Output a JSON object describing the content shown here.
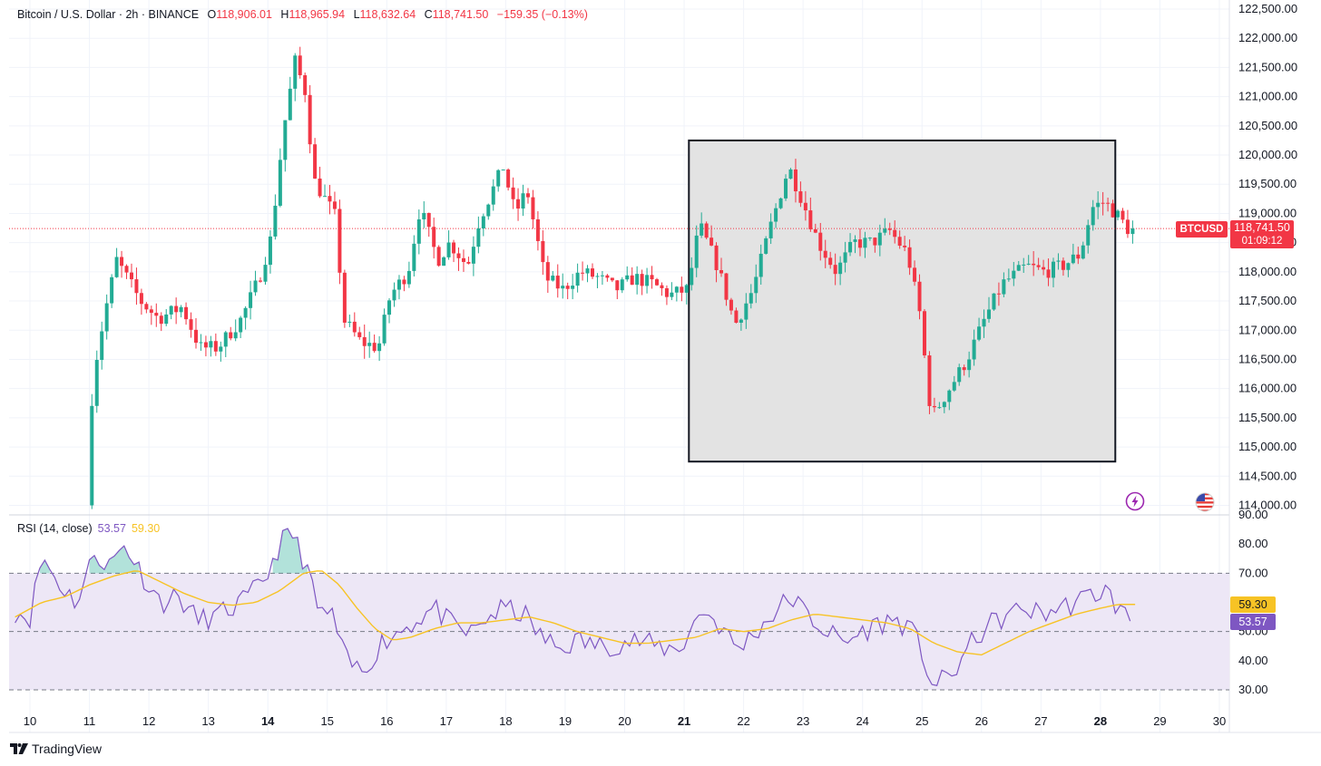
{
  "header": {
    "symbol": "Bitcoin / U.S. Dollar · 2h · BINANCE",
    "o_label": "O",
    "o_value": "118,906.01",
    "h_label": "H",
    "h_value": "118,965.94",
    "l_label": "L",
    "l_value": "118,632.64",
    "c_label": "C",
    "c_value": "118,741.50",
    "change": "−159.35 (−0.13%)"
  },
  "price_tag": {
    "symbol": "BTCUSD",
    "price": "118,741.50",
    "countdown": "01:09:12"
  },
  "rsi_header": {
    "label": "RSI (14, close)",
    "rsi_value": "53.57",
    "ma_value": "59.30"
  },
  "rsi_tags": {
    "ma": "59.30",
    "rsi": "53.57"
  },
  "brand": "TradingView",
  "colors": {
    "up": "#22ab94",
    "down": "#f23645",
    "rsi": "#7e57c2",
    "rsi_ma": "#f7c325",
    "band": "#ede7f6"
  },
  "chart_data": [
    {
      "type": "candlestick",
      "title": "Bitcoin / U.S. Dollar · 2h · BINANCE",
      "ylim": [
        114000,
        122500
      ],
      "yticks": [
        "122,500.00",
        "122,000.00",
        "121,500.00",
        "121,000.00",
        "120,500.00",
        "120,000.00",
        "119,500.00",
        "119,000.00",
        "118,500.00",
        "118,000.00",
        "117,500.00",
        "117,000.00",
        "116,500.00",
        "116,000.00",
        "115,500.00",
        "115,000.00",
        "114,500.00",
        "114,000.00"
      ],
      "xticks": [
        "10",
        "11",
        "12",
        "13",
        "14",
        "15",
        "16",
        "17",
        "18",
        "19",
        "20",
        "21",
        "22",
        "23",
        "24",
        "25",
        "26",
        "27",
        "28",
        "29",
        "30"
      ],
      "bold_xticks": [
        "14",
        "21",
        "28"
      ],
      "last_price": 118741.5,
      "highlight_box": {
        "x_from": 21.08,
        "x_to": 28.25,
        "y_from": 114750,
        "y_to": 120250
      },
      "anchors": [
        [
          11.0,
          114000
        ],
        [
          11.1,
          116200
        ],
        [
          11.3,
          117300
        ],
        [
          11.5,
          118200
        ],
        [
          11.9,
          117500
        ],
        [
          12.2,
          117200
        ],
        [
          12.6,
          117400
        ],
        [
          12.9,
          116700
        ],
        [
          13.2,
          116700
        ],
        [
          13.6,
          117200
        ],
        [
          13.9,
          117900
        ],
        [
          14.1,
          118600
        ],
        [
          14.3,
          120400
        ],
        [
          14.5,
          121600
        ],
        [
          14.7,
          121000
        ],
        [
          14.8,
          119600
        ],
        [
          15.2,
          118900
        ],
        [
          15.3,
          117200
        ],
        [
          15.6,
          116800
        ],
        [
          15.9,
          116700
        ],
        [
          16.1,
          117600
        ],
        [
          16.4,
          118000
        ],
        [
          16.6,
          119100
        ],
        [
          16.9,
          118200
        ],
        [
          17.1,
          118500
        ],
        [
          17.4,
          118100
        ],
        [
          17.6,
          118900
        ],
        [
          18.0,
          119800
        ],
        [
          18.2,
          119000
        ],
        [
          18.4,
          119400
        ],
        [
          18.7,
          117900
        ],
        [
          19.0,
          117700
        ],
        [
          19.3,
          118000
        ],
        [
          19.6,
          117900
        ],
        [
          19.9,
          117700
        ],
        [
          20.2,
          117900
        ],
        [
          20.5,
          117800
        ],
        [
          20.8,
          117600
        ],
        [
          21.1,
          117700
        ],
        [
          21.3,
          118800
        ],
        [
          21.6,
          118100
        ],
        [
          21.9,
          117100
        ],
        [
          22.2,
          117700
        ],
        [
          22.5,
          118800
        ],
        [
          22.8,
          119800
        ],
        [
          23.0,
          119300
        ],
        [
          23.3,
          118500
        ],
        [
          23.6,
          118000
        ],
        [
          23.9,
          118500
        ],
        [
          24.2,
          118500
        ],
        [
          24.5,
          118700
        ],
        [
          24.8,
          118300
        ],
        [
          25.0,
          117300
        ],
        [
          25.2,
          115500
        ],
        [
          25.5,
          116000
        ],
        [
          25.8,
          116500
        ],
        [
          26.1,
          117200
        ],
        [
          26.4,
          117800
        ],
        [
          26.8,
          118100
        ],
        [
          27.1,
          118000
        ],
        [
          27.4,
          118100
        ],
        [
          27.7,
          118300
        ],
        [
          27.9,
          119100
        ],
        [
          28.1,
          119200
        ],
        [
          28.3,
          119000
        ],
        [
          28.5,
          118741.5
        ]
      ]
    },
    {
      "type": "line",
      "title": "RSI (14, close)",
      "ylim": [
        30,
        90
      ],
      "yticks": [
        "90.00",
        "80.00",
        "70.00",
        "60.00",
        "50.00",
        "40.00",
        "30.00"
      ],
      "bands": {
        "upper": 70,
        "middle": 50,
        "lower": 30
      },
      "series": [
        {
          "values_anchor": [
            [
              9.75,
              57
            ],
            [
              10.0,
              55
            ],
            [
              10.2,
              76
            ],
            [
              10.5,
              66
            ],
            [
              10.8,
              60
            ],
            [
              11.1,
              78
            ],
            [
              11.3,
              72
            ],
            [
              11.6,
              80
            ],
            [
              11.9,
              69
            ],
            [
              12.2,
              60
            ],
            [
              12.5,
              62
            ],
            [
              12.8,
              54
            ],
            [
              13.1,
              55
            ],
            [
              13.4,
              58
            ],
            [
              13.7,
              62
            ],
            [
              14.0,
              70
            ],
            [
              14.2,
              80
            ],
            [
              14.4,
              84
            ],
            [
              14.7,
              70
            ],
            [
              14.8,
              58
            ],
            [
              15.1,
              55
            ],
            [
              15.3,
              40
            ],
            [
              15.6,
              36
            ],
            [
              15.9,
              46
            ],
            [
              16.2,
              50
            ],
            [
              16.5,
              54
            ],
            [
              16.8,
              58
            ],
            [
              17.1,
              52
            ],
            [
              17.4,
              49
            ],
            [
              17.7,
              55
            ],
            [
              18.0,
              58
            ],
            [
              18.3,
              56
            ],
            [
              18.6,
              48
            ],
            [
              18.9,
              44
            ],
            [
              19.2,
              47
            ],
            [
              19.6,
              45
            ],
            [
              19.9,
              46
            ],
            [
              20.2,
              47
            ],
            [
              20.5,
              45
            ],
            [
              20.8,
              44
            ],
            [
              21.0,
              46
            ],
            [
              21.3,
              58
            ],
            [
              21.6,
              52
            ],
            [
              21.9,
              44
            ],
            [
              22.2,
              50
            ],
            [
              22.5,
              56
            ],
            [
              22.8,
              62
            ],
            [
              23.1,
              55
            ],
            [
              23.4,
              50
            ],
            [
              23.7,
              46
            ],
            [
              24.0,
              50
            ],
            [
              24.3,
              53
            ],
            [
              24.6,
              54
            ],
            [
              24.9,
              48
            ],
            [
              25.2,
              31
            ],
            [
              25.5,
              35
            ],
            [
              25.8,
              45
            ],
            [
              26.1,
              52
            ],
            [
              26.4,
              55
            ],
            [
              26.7,
              58
            ],
            [
              27.0,
              56
            ],
            [
              27.3,
              58
            ],
            [
              27.6,
              60
            ],
            [
              27.9,
              63
            ],
            [
              28.1,
              64
            ],
            [
              28.3,
              58
            ],
            [
              28.5,
              53.57
            ]
          ]
        },
        {
          "values_anchor": [
            [
              9.75,
              55
            ],
            [
              10.2,
              60
            ],
            [
              10.6,
              62
            ],
            [
              11.0,
              66
            ],
            [
              11.4,
              69
            ],
            [
              11.8,
              71
            ],
            [
              12.2,
              67
            ],
            [
              12.6,
              63
            ],
            [
              13.0,
              60
            ],
            [
              13.4,
              59
            ],
            [
              13.8,
              60
            ],
            [
              14.2,
              64
            ],
            [
              14.6,
              70
            ],
            [
              14.9,
              71
            ],
            [
              15.2,
              66
            ],
            [
              15.5,
              58
            ],
            [
              15.8,
              51
            ],
            [
              16.1,
              47
            ],
            [
              16.4,
              48
            ],
            [
              16.8,
              51
            ],
            [
              17.2,
              53
            ],
            [
              17.6,
              53
            ],
            [
              18.0,
              54
            ],
            [
              18.4,
              55
            ],
            [
              18.8,
              53
            ],
            [
              19.2,
              50
            ],
            [
              19.6,
              48
            ],
            [
              20.0,
              46
            ],
            [
              20.4,
              46
            ],
            [
              20.8,
              47
            ],
            [
              21.2,
              48
            ],
            [
              21.6,
              51
            ],
            [
              22.0,
              50
            ],
            [
              22.4,
              51
            ],
            [
              22.8,
              54
            ],
            [
              23.2,
              56
            ],
            [
              23.6,
              55
            ],
            [
              24.0,
              54
            ],
            [
              24.4,
              53
            ],
            [
              24.8,
              51
            ],
            [
              25.2,
              46
            ],
            [
              25.6,
              43
            ],
            [
              26.0,
              42
            ],
            [
              26.4,
              46
            ],
            [
              26.8,
              50
            ],
            [
              27.2,
              53
            ],
            [
              27.6,
              56
            ],
            [
              28.0,
              58
            ],
            [
              28.3,
              59.3
            ],
            [
              28.6,
              59.3
            ]
          ]
        }
      ]
    }
  ]
}
